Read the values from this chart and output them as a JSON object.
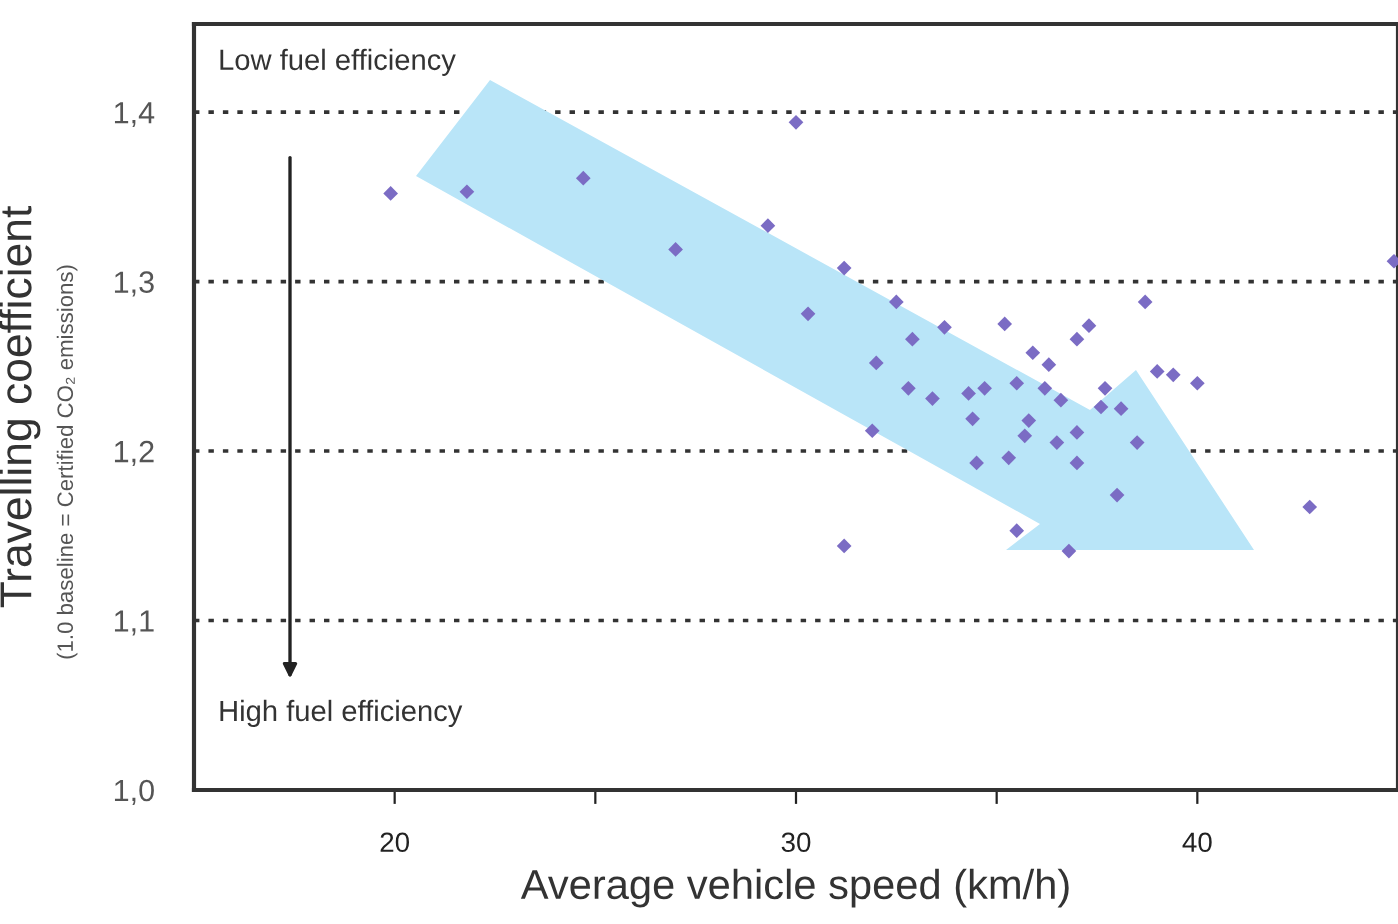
{
  "chart_data": {
    "type": "scatter",
    "xlabel": "Average vehicle speed (km/h)",
    "ylabel": "Travelling coefficient",
    "annotations": [
      "(1.0 baseline = Certified CO₂ emissions)",
      "Low fuel efficiency",
      "High fuel efficiency"
    ],
    "series": [
      {
        "color": "#7b6cc4",
        "x": [
          19.9,
          21.8,
          24.7,
          27.0,
          29.3,
          30.0,
          31.2,
          30.3,
          32.0,
          31.9,
          32.5,
          33.7,
          32.9,
          35.2,
          37.3,
          38.7,
          37.0,
          35.9,
          36.3,
          39.0,
          39.4,
          40.0,
          32.8,
          33.4,
          34.3,
          34.7,
          35.5,
          36.2,
          36.6,
          37.7,
          37.6,
          38.1,
          34.4,
          35.8,
          35.7,
          36.5,
          37.0,
          38.5,
          34.5,
          35.3,
          37.0,
          38.0,
          42.8,
          35.5,
          31.2,
          36.8,
          44.9
        ],
        "values": [
          1.352,
          1.353,
          1.361,
          1.319,
          1.333,
          1.394,
          1.308,
          1.281,
          1.252,
          1.212,
          1.288,
          1.273,
          1.266,
          1.275,
          1.274,
          1.288,
          1.266,
          1.258,
          1.251,
          1.247,
          1.245,
          1.24,
          1.237,
          1.231,
          1.234,
          1.237,
          1.24,
          1.237,
          1.23,
          1.237,
          1.226,
          1.225,
          1.219,
          1.218,
          1.209,
          1.205,
          1.211,
          1.205,
          1.193,
          1.196,
          1.193,
          1.174,
          1.167,
          1.153,
          1.144,
          1.141,
          1.312
        ]
      }
    ],
    "xlim": [
      15,
      45
    ],
    "xticks": [
      20,
      {
        "value": 25,
        "label": null
      },
      30,
      {
        "value": 35,
        "label": null
      },
      40
    ],
    "ylim": [
      1.0,
      1.452
    ],
    "yticks": [
      {
        "value": 1.0,
        "label": "1,0"
      },
      {
        "value": 1.1,
        "label": "1,1"
      },
      {
        "value": 1.2,
        "label": "1,2"
      },
      {
        "value": 1.3,
        "label": "1,3"
      },
      {
        "value": 1.4,
        "label": "1,4"
      }
    ],
    "grid": "y",
    "marker": "diamond"
  }
}
